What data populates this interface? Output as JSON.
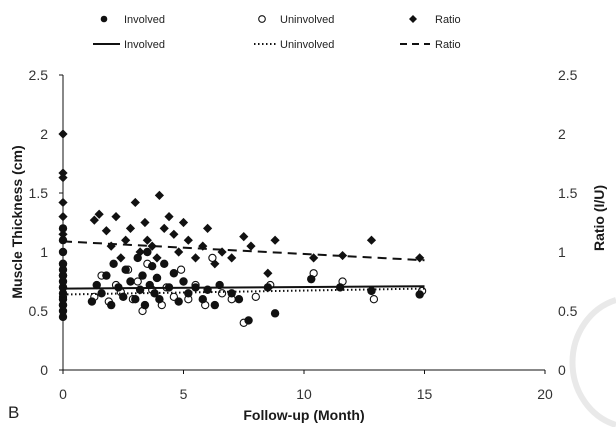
{
  "panel_label": "B",
  "chart_data": {
    "type": "scatter",
    "title": "",
    "xlabel": "Follow-up  (Month)",
    "ylabel_left": "Muscle Thickness (cm)",
    "ylabel_right": "Ratio (I/U)",
    "xlim": [
      0,
      20
    ],
    "ylim_left": [
      0,
      2.5
    ],
    "ylim_right": [
      0,
      2.5
    ],
    "x_ticks": [
      "0",
      "5",
      "10",
      "15",
      "20"
    ],
    "y_ticks_left": [
      "0",
      "0.5",
      "1",
      "1.5",
      "2",
      "2.5"
    ],
    "y_ticks_right": [
      "0",
      "0.5",
      "1",
      "1.5",
      "2",
      "2.5"
    ],
    "grid": false,
    "legend": {
      "placement": "top",
      "markers": [
        "Involved",
        "Uninvolved",
        "Ratio"
      ],
      "lines": [
        "Involved",
        "Uninvolved",
        "Ratio"
      ]
    },
    "series": [
      {
        "name": "Involved",
        "kind": "points",
        "marker": "filled-circle",
        "axis": "left",
        "x": [
          0,
          0,
          0,
          0,
          0,
          0,
          0,
          0,
          0,
          0,
          0,
          0,
          0,
          1.2,
          1.4,
          1.6,
          1.8,
          2.0,
          2.1,
          2.3,
          2.5,
          2.6,
          2.8,
          3.0,
          3.1,
          3.2,
          3.3,
          3.4,
          3.5,
          3.6,
          3.7,
          3.8,
          3.9,
          4.0,
          4.2,
          4.4,
          4.6,
          4.8,
          5.0,
          5.2,
          5.5,
          5.8,
          6.0,
          6.3,
          6.5,
          7.0,
          7.3,
          7.7,
          8.5,
          8.8,
          10.3,
          11.5,
          12.8,
          14.8
        ],
        "y": [
          0.45,
          0.5,
          0.55,
          0.6,
          0.65,
          0.7,
          0.75,
          0.8,
          0.85,
          0.9,
          1.0,
          1.1,
          1.2,
          0.58,
          0.72,
          0.65,
          0.8,
          0.55,
          0.9,
          0.7,
          0.62,
          0.85,
          0.75,
          0.6,
          0.95,
          0.68,
          0.8,
          0.55,
          1.0,
          0.72,
          0.88,
          0.65,
          0.78,
          0.6,
          0.9,
          0.7,
          0.82,
          0.58,
          0.75,
          0.65,
          0.7,
          0.6,
          0.68,
          0.55,
          0.72,
          0.65,
          0.6,
          0.42,
          0.7,
          0.48,
          0.77,
          0.7,
          0.67,
          0.64
        ]
      },
      {
        "name": "Uninvolved",
        "kind": "points",
        "marker": "open-circle",
        "axis": "left",
        "x": [
          0,
          0,
          0,
          0,
          0,
          1.3,
          1.6,
          1.9,
          2.2,
          2.4,
          2.7,
          2.9,
          3.1,
          3.3,
          3.5,
          3.7,
          3.9,
          4.1,
          4.3,
          4.6,
          4.9,
          5.2,
          5.5,
          5.9,
          6.2,
          6.6,
          7.0,
          7.5,
          8.0,
          8.6,
          10.4,
          11.6,
          12.9,
          14.9
        ],
        "y": [
          0.55,
          0.62,
          0.7,
          0.8,
          0.9,
          0.62,
          0.8,
          0.58,
          0.72,
          0.66,
          0.85,
          0.6,
          0.75,
          0.5,
          0.9,
          0.68,
          0.78,
          0.55,
          0.7,
          0.62,
          0.85,
          0.6,
          0.72,
          0.55,
          0.95,
          0.65,
          0.6,
          0.4,
          0.62,
          0.72,
          0.82,
          0.75,
          0.6,
          0.67
        ]
      },
      {
        "name": "Ratio",
        "kind": "points",
        "marker": "filled-diamond",
        "axis": "right",
        "x": [
          0,
          0,
          0,
          0,
          0,
          0,
          1.3,
          1.5,
          1.8,
          2.0,
          2.2,
          2.4,
          2.6,
          2.8,
          3.0,
          3.2,
          3.4,
          3.5,
          3.7,
          3.9,
          4.0,
          4.2,
          4.4,
          4.6,
          4.8,
          5.0,
          5.2,
          5.5,
          5.8,
          6.0,
          6.3,
          6.6,
          7.0,
          7.5,
          7.8,
          8.5,
          8.8,
          10.4,
          11.6,
          12.8,
          14.8
        ],
        "y": [
          2.0,
          1.67,
          1.63,
          1.42,
          1.3,
          1.15,
          1.27,
          1.32,
          1.18,
          1.05,
          1.3,
          0.95,
          1.1,
          1.2,
          1.42,
          1.0,
          1.25,
          1.1,
          1.05,
          0.95,
          1.48,
          1.2,
          1.3,
          1.15,
          1.0,
          1.25,
          1.1,
          0.95,
          1.05,
          1.2,
          0.9,
          1.0,
          0.95,
          1.13,
          1.05,
          0.82,
          1.1,
          0.95,
          0.97,
          1.1,
          0.95
        ]
      },
      {
        "name": "Involved",
        "kind": "trendline",
        "style": "solid",
        "axis": "left",
        "x": [
          0,
          15
        ],
        "y": [
          0.69,
          0.71
        ]
      },
      {
        "name": "Uninvolved",
        "kind": "trendline",
        "style": "dotted",
        "axis": "left",
        "x": [
          0,
          15
        ],
        "y": [
          0.64,
          0.69
        ]
      },
      {
        "name": "Ratio",
        "kind": "trendline",
        "style": "dashed",
        "axis": "right",
        "x": [
          0,
          15
        ],
        "y": [
          1.09,
          0.93
        ]
      }
    ]
  }
}
